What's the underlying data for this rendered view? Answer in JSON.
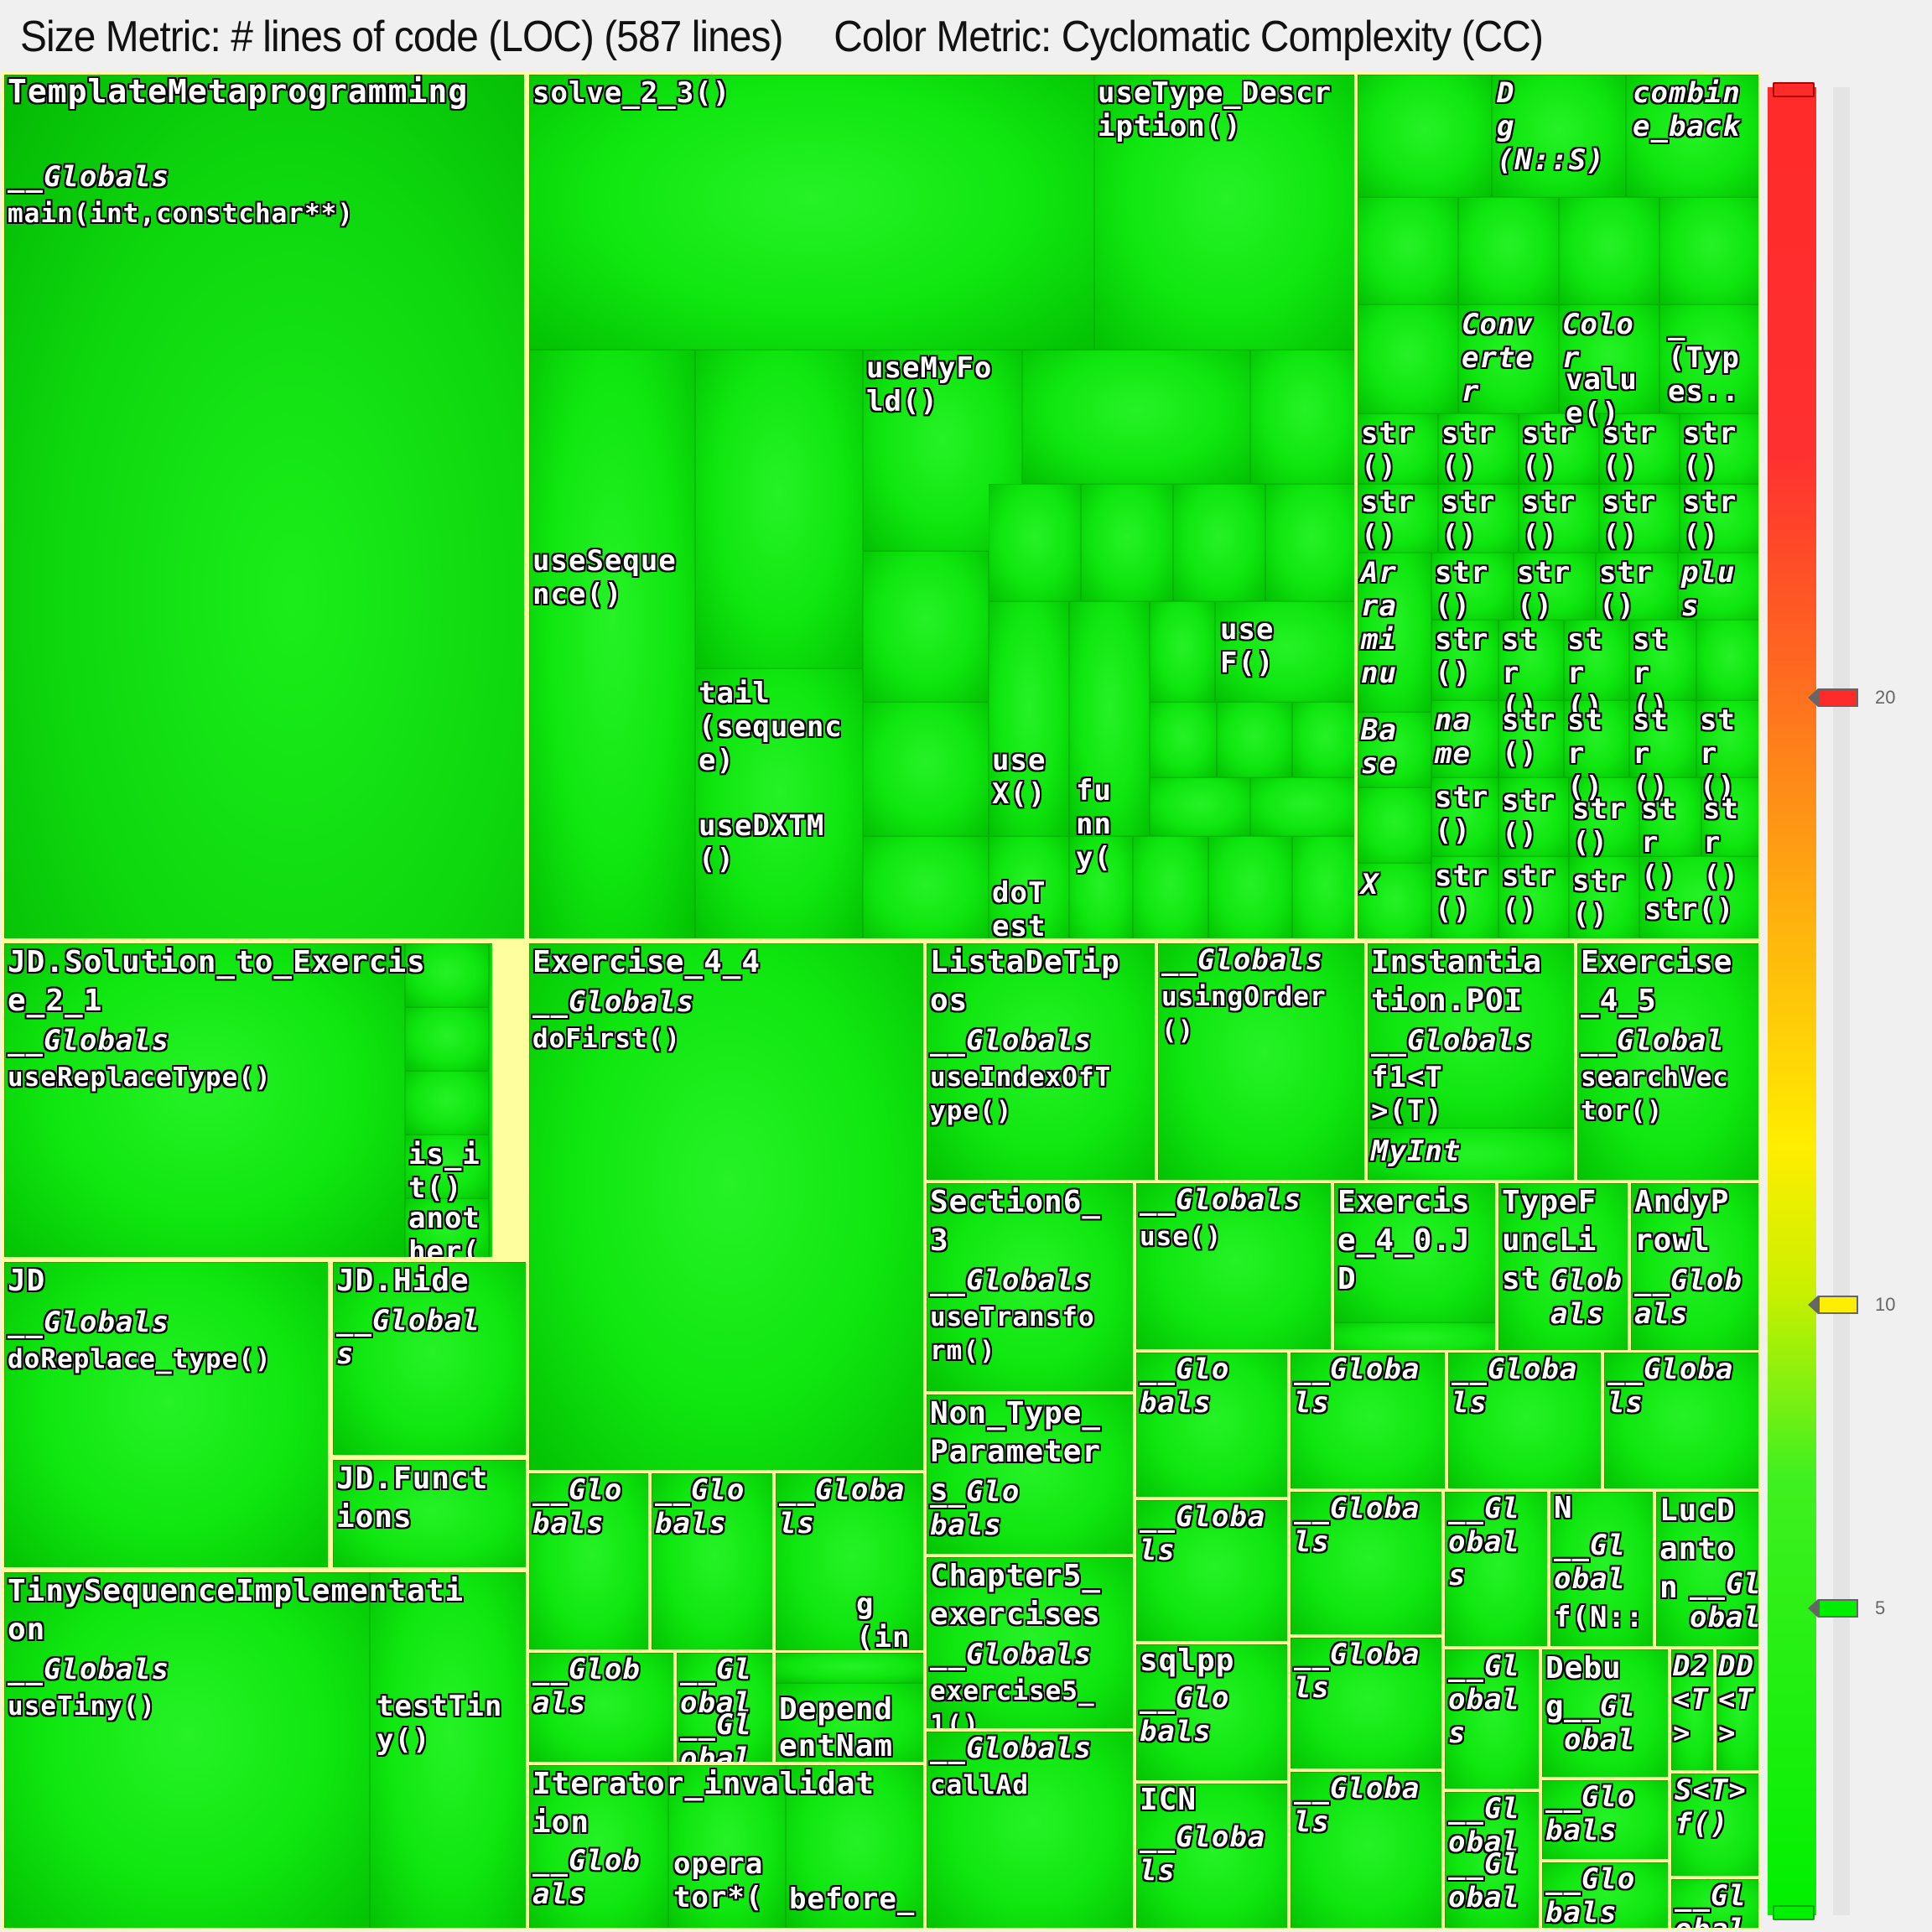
{
  "header": {
    "size_metric": "Size Metric: # lines of code (LOC) (587 lines)",
    "color_metric": "Color Metric: Cyclomatic Complexity (CC)"
  },
  "colors": {
    "low": "#00f000",
    "mid": "#ffee00",
    "high": "#ff2a2a",
    "border": "#fffe9e"
  },
  "legend": {
    "ticks": [
      {
        "label": "20",
        "color": "#ff2a2a"
      },
      {
        "label": "10",
        "color": "#ffee00"
      },
      {
        "label": "5",
        "color": "#00ee00"
      }
    ]
  },
  "labels": {
    "tm_title": "TemplateMetaprogramming",
    "tm_globals": "__Globals",
    "tm_main": "main(int,constchar**)",
    "solve": "solve_2_3()",
    "usetype": "useType_Descr\niption()",
    "dg": "D\ng\n(N::S)",
    "combine": "combin\ne_back",
    "conv": "Conv\nerte\nr",
    "color": "Colo\nr",
    "value": "valu\ne()",
    "types": "_\n(Typ\nes..",
    "str": "str\n()",
    "str_small": "st\nr\n()",
    "str_flat": "str()",
    "arami": "Ar\nra\nmi\nnu",
    "plus": "plu\ns",
    "base": "Ba\nse",
    "name": "na\nme",
    "x": "X",
    "usemyfold": "useMyFo\nld()",
    "usesequence": "useSeque\nnce()",
    "tail": "tail\n(sequenc\ne)",
    "usedxtm": "useDXTM\n()",
    "usex": "use\nX()",
    "funny": "fu\nnn\ny(",
    "dotest": "doT\nest",
    "usef": "use\nF()",
    "jd_sol": "JD.Solution_to_Exercis\ne_2_1",
    "globals": "__Globals",
    "usereplace": "useReplaceType()",
    "isit": "is_i\nt()",
    "another": "anot\nher(",
    "jd": "JD",
    "doreplace": "doReplace_type()",
    "jdhide": "JD.Hide",
    "globals_s": "__Global\ns",
    "jdfunct": "JD.Funct\nions",
    "tiny": "TinySequenceImplementati\non",
    "usetiny": "useTiny()",
    "testtiny": "testTin\ny()",
    "ex44": "Exercise_4_4",
    "dofirst": "doFirst()",
    "glo_bals": "__Glo\nbals",
    "globa_ls": "__Globa\nls",
    "g_in": "g\n(in",
    "glob_als": "__Glob\nals",
    "gl_obal": "__Gl\nobal",
    "depend": "Depend\nentNam",
    "iter": "Iterator_invalidat\nion",
    "operator": "opera\ntor*(",
    "before": "before_",
    "listadetipos": "ListaDeTip\nos",
    "useindexof": "useIndexOfT\nype()",
    "usingorder": "usingOrder\n()",
    "inst": "Instantia\ntion.POI",
    "f1t": "f1<T\n>(T)",
    "myint": "MyInt",
    "ex45": "Exercise\n_4_5",
    "global_": "__Global",
    "searchvec": "searchVec\ntor()",
    "section6": "Section6_\n3",
    "usetransform": "useTransfo\nrm()",
    "use": "use()",
    "ex40": "Exercis\ne_4_0.J\nD",
    "typef": "TypeF\nuncLi\nst",
    "andy": "AndyP\nrowl",
    "glob_": "__Glob\nals",
    "glob_small": "Glob\nals",
    "nontype": "Non_Type_\nParameter\ns",
    "glo_bals_inline": "__Glo\nbals",
    "chapter5": "Chapter5_\nexercises",
    "exercise51": "exercise5_\n1()",
    "calladd": "callAd",
    "sqlpp": "sqlpp",
    "icn": "ICN",
    "n": "N",
    "f_ns": "f(N::",
    "lucd": "LucD\nanto\nn",
    "debug": "Debu\ng",
    "d2": "D2\n<T\n>",
    "dd": "DD\n<T\n>",
    "st": "S<T>\nf()",
    "gl_obal_s": "__Gl\nobal\ns"
  }
}
